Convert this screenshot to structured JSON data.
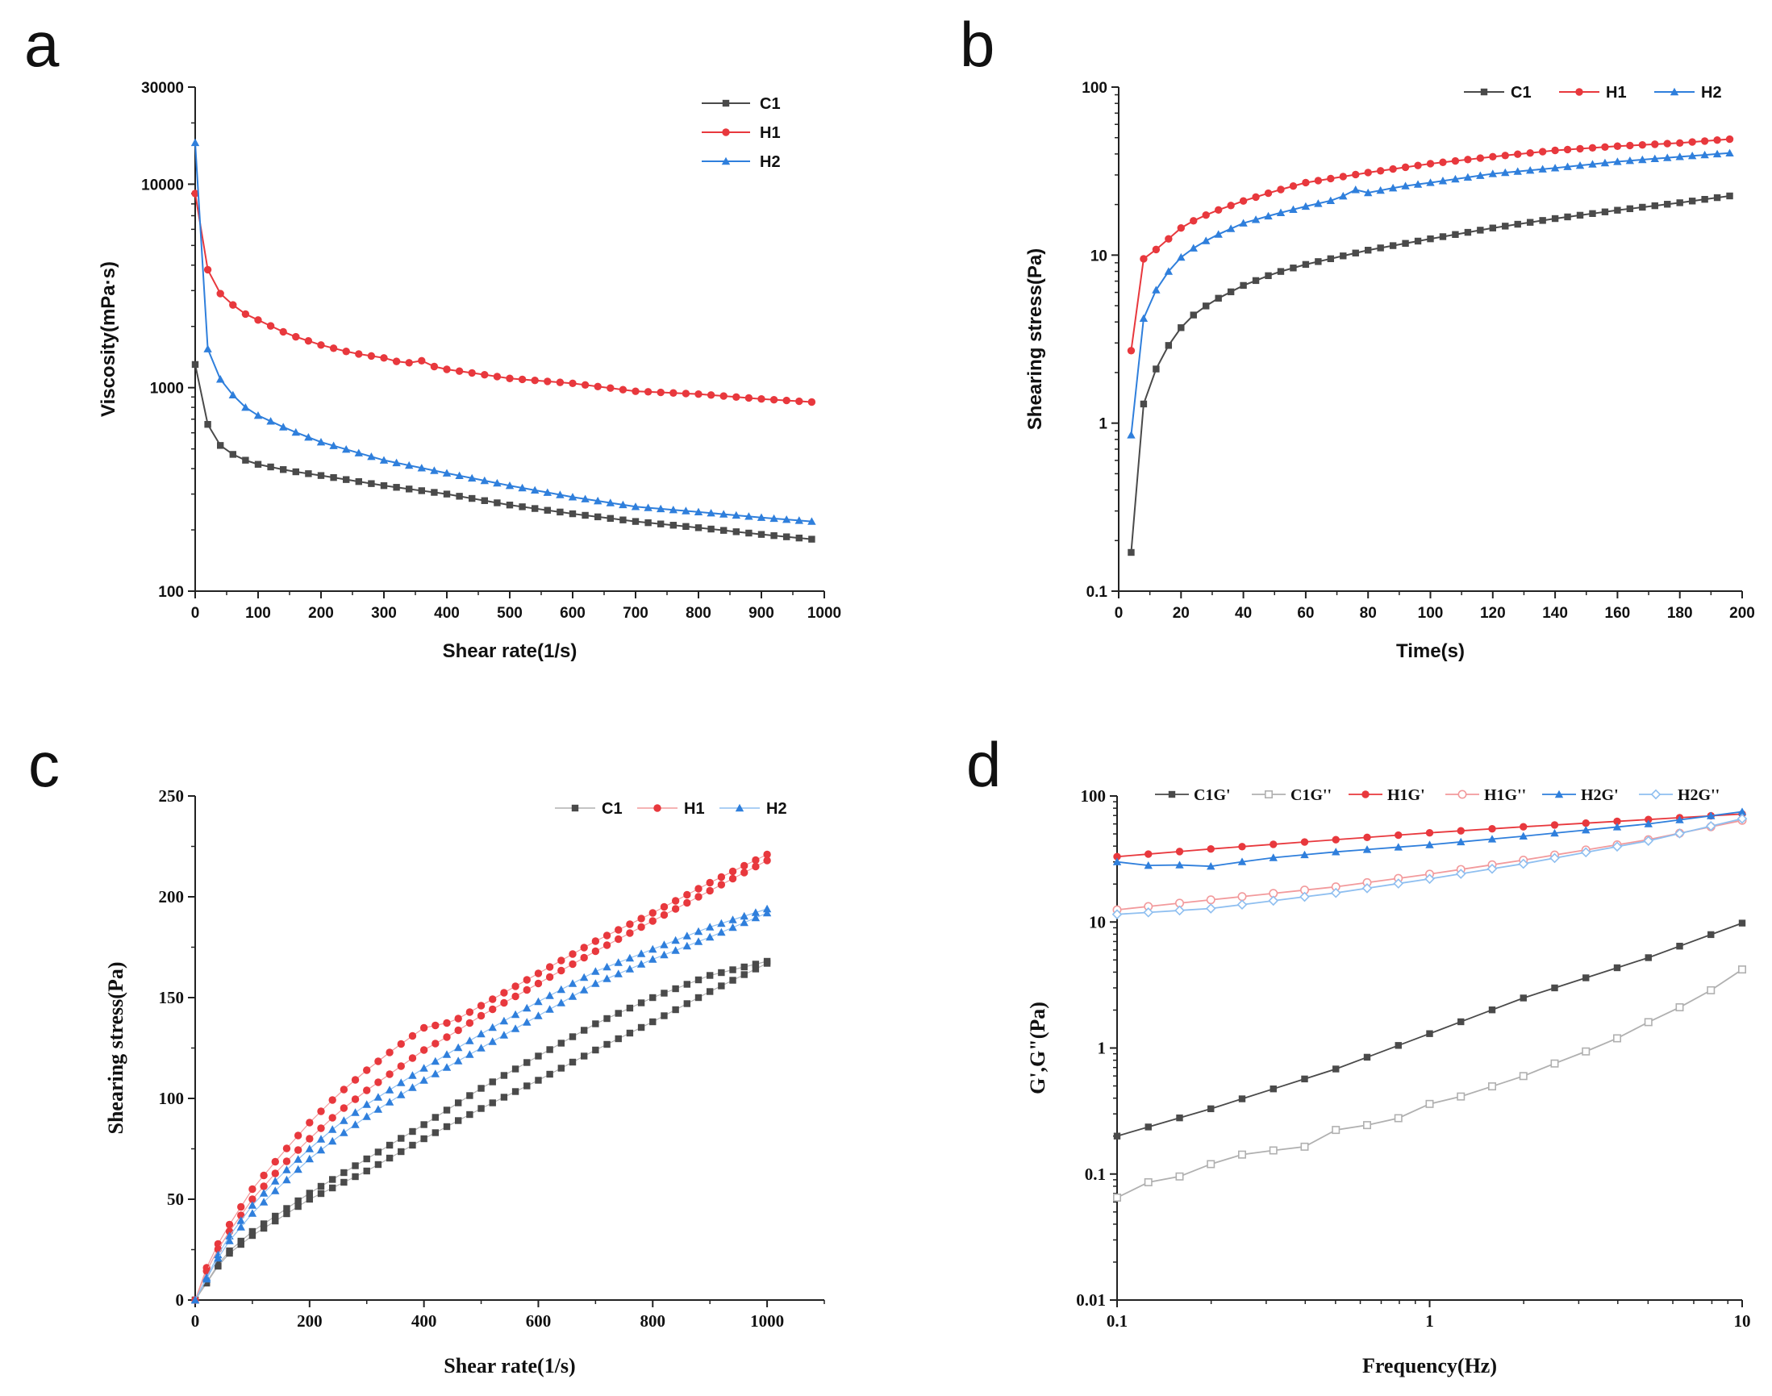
{
  "colors": {
    "C1": "#4a4a4a",
    "H1": "#e8383d",
    "H2": "#2f7fdc",
    "C1_open": "#b0b0b0",
    "H1_open": "#f29a9c",
    "H2_open": "#8fbff0"
  },
  "chart_data": [
    {
      "panel": "a",
      "type": "line",
      "xlabel": "Shear rate(1/s)",
      "ylabel": "Viscosity(mPa·s)",
      "xlim": [
        0,
        1000
      ],
      "ylim": [
        100,
        30000
      ],
      "yscale": "log",
      "xticks": [
        "0",
        "100",
        "200",
        "300",
        "400",
        "500",
        "600",
        "700",
        "800",
        "900",
        "1000"
      ],
      "yticks": [
        "100",
        "1000",
        "10000",
        "30000"
      ],
      "legend": "top-right",
      "series": [
        {
          "name": "C1",
          "x": [
            0,
            20,
            40,
            60,
            80,
            100,
            150,
            200,
            300,
            400,
            500,
            600,
            700,
            800,
            900,
            980
          ],
          "y": [
            1300,
            660,
            520,
            470,
            440,
            420,
            390,
            370,
            330,
            300,
            265,
            240,
            220,
            205,
            190,
            180
          ]
        },
        {
          "name": "H1",
          "x": [
            0,
            20,
            40,
            60,
            80,
            100,
            150,
            200,
            250,
            300,
            330,
            350,
            365,
            380,
            400,
            450,
            500,
            600,
            700,
            800,
            900,
            980
          ],
          "y": [
            9000,
            3800,
            2900,
            2550,
            2300,
            2150,
            1820,
            1620,
            1480,
            1400,
            1320,
            1330,
            1370,
            1270,
            1230,
            1170,
            1110,
            1050,
            960,
            930,
            880,
            850
          ]
        },
        {
          "name": "H2",
          "x": [
            0,
            20,
            40,
            60,
            80,
            100,
            150,
            200,
            300,
            400,
            500,
            600,
            700,
            800,
            900,
            980
          ],
          "y": [
            16000,
            1550,
            1100,
            920,
            800,
            730,
            620,
            540,
            440,
            380,
            330,
            290,
            260,
            245,
            230,
            220
          ]
        }
      ]
    },
    {
      "panel": "b",
      "type": "line",
      "xlabel": "Time(s)",
      "ylabel": "Shearing stress(Pa)",
      "xlim": [
        0,
        200
      ],
      "ylim": [
        0.1,
        100
      ],
      "yscale": "log",
      "xticks": [
        "0",
        "20",
        "40",
        "60",
        "80",
        "100",
        "120",
        "140",
        "160",
        "180",
        "200"
      ],
      "yticks": [
        "0.1",
        "1",
        "10",
        "100"
      ],
      "legend": "top-right",
      "series": [
        {
          "name": "C1",
          "x": [
            4,
            8,
            12,
            16,
            20,
            24,
            30,
            40,
            50,
            60,
            80,
            100,
            120,
            140,
            160,
            180,
            196
          ],
          "y": [
            0.17,
            1.3,
            2.1,
            2.9,
            3.7,
            4.4,
            5.3,
            6.6,
            7.8,
            8.8,
            10.7,
            12.5,
            14.5,
            16.5,
            18.5,
            20.5,
            22.5
          ]
        },
        {
          "name": "H1",
          "x": [
            4,
            8,
            12,
            16,
            20,
            24,
            30,
            40,
            50,
            60,
            80,
            100,
            120,
            140,
            160,
            180,
            196
          ],
          "y": [
            2.7,
            9.5,
            10.8,
            12.5,
            14.5,
            16,
            18,
            21,
            24,
            27,
            31,
            35,
            38.5,
            42,
            44.5,
            46.5,
            49
          ]
        },
        {
          "name": "H2",
          "x": [
            4,
            8,
            12,
            16,
            20,
            24,
            30,
            40,
            50,
            60,
            70,
            76,
            80,
            90,
            100,
            120,
            140,
            160,
            180,
            196
          ],
          "y": [
            0.85,
            4.2,
            6.2,
            8.0,
            9.7,
            11,
            12.8,
            15.5,
            17.5,
            19.5,
            21.5,
            24.5,
            23.5,
            25.5,
            27,
            30.5,
            33,
            36,
            38.5,
            40.5
          ]
        }
      ]
    },
    {
      "panel": "c",
      "type": "scatter",
      "xlabel": "Shear rate(1/s)",
      "ylabel": "Shearing stress(Pa)",
      "xlim": [
        0,
        1100
      ],
      "ylim": [
        0,
        250
      ],
      "xticks": [
        "0",
        "200",
        "400",
        "600",
        "800",
        "1000"
      ],
      "yticks": [
        "0",
        "50",
        "100",
        "150",
        "200",
        "250"
      ],
      "legend": "top-right",
      "series": [
        {
          "name": "C1",
          "up": {
            "x": [
              0,
              50,
              100,
              200,
              300,
              400,
              500,
              600,
              700,
              800,
              900,
              1000
            ],
            "y": [
              0,
              22,
              34,
              53,
              70,
              87,
              105,
              121,
              137,
              150,
              161,
              168
            ]
          },
          "down": {
            "x": [
              0,
              50,
              100,
              200,
              300,
              400,
              500,
              600,
              700,
              800,
              900,
              1000
            ],
            "y": [
              0,
              21,
              32,
              50,
              64,
              80,
              95,
              109,
              124,
              138,
              153,
              167
            ]
          }
        },
        {
          "name": "H1",
          "up": {
            "x": [
              0,
              25,
              50,
              100,
              150,
              200,
              250,
              300,
              350,
              400,
              450,
              500,
              600,
              700,
              800,
              900,
              1000
            ],
            "y": [
              0,
              20,
              33,
              55,
              72,
              88,
              102,
              114,
              125,
              135,
              138,
              146,
              162,
              178,
              192,
              207,
              221
            ]
          },
          "down": {
            "x": [
              0,
              25,
              50,
              100,
              150,
              200,
              250,
              300,
              350,
              400,
              450,
              500,
              600,
              700,
              800,
              900,
              1000
            ],
            "y": [
              0,
              18,
              30,
              50,
              66,
              80,
              93,
              104,
              114,
              124,
              132,
              141,
              157,
              173,
              188,
              203,
              218
            ]
          }
        },
        {
          "name": "H2",
          "up": {
            "x": [
              0,
              50,
              100,
              150,
              200,
              250,
              300,
              350,
              400,
              500,
              600,
              700,
              800,
              900,
              1000
            ],
            "y": [
              0,
              28,
              47,
              62,
              75,
              87,
              97,
              106,
              115,
              132,
              148,
              163,
              174,
              185,
              194
            ]
          },
          "down": {
            "x": [
              0,
              50,
              100,
              150,
              200,
              250,
              300,
              350,
              400,
              500,
              600,
              700,
              800,
              900,
              1000
            ],
            "y": [
              0,
              26,
              43,
              57,
              70,
              81,
              91,
              100,
              109,
              125,
              141,
              157,
              169,
              180,
              192
            ]
          }
        }
      ]
    },
    {
      "panel": "d",
      "type": "line",
      "xlabel": "Frequency(Hz)",
      "ylabel": "G',G\"(Pa)",
      "xlim": [
        0.1,
        10
      ],
      "ylim": [
        0.01,
        100
      ],
      "xscale": "log",
      "yscale": "log",
      "xticks": [
        "0.1",
        "1",
        "10"
      ],
      "yticks": [
        "0.01",
        "0.1",
        "1",
        "10",
        "100"
      ],
      "legend": "top",
      "series": [
        {
          "name": "C1G'",
          "marker": "filled-square",
          "x": [
            0.1,
            0.2,
            0.5,
            1,
            2,
            5,
            10
          ],
          "y": [
            0.2,
            0.33,
            0.68,
            1.3,
            2.5,
            5.2,
            9.8
          ]
        },
        {
          "name": "C1G''",
          "marker": "open-square",
          "x": [
            0.1,
            0.12,
            0.15,
            0.18,
            0.22,
            0.27,
            0.33,
            0.4,
            0.48,
            0.6,
            0.75,
            1,
            1.3,
            1.6,
            2,
            2.5,
            3.2,
            4,
            5,
            6.3,
            8,
            10
          ],
          "y": [
            0.065,
            0.085,
            0.09,
            0.11,
            0.13,
            0.15,
            0.155,
            0.165,
            0.22,
            0.24,
            0.26,
            0.36,
            0.42,
            0.5,
            0.6,
            0.75,
            0.95,
            1.2,
            1.6,
            2.1,
            2.9,
            4.2
          ]
        },
        {
          "name": "H1G'",
          "marker": "filled-circle",
          "x": [
            0.1,
            0.2,
            0.5,
            1,
            2,
            5,
            10
          ],
          "y": [
            33,
            38,
            45,
            51,
            57,
            65,
            72
          ]
        },
        {
          "name": "H1G''",
          "marker": "open-circle",
          "x": [
            0.1,
            0.2,
            0.5,
            1,
            2,
            5,
            10
          ],
          "y": [
            12.5,
            15,
            19,
            24,
            31,
            45,
            64
          ]
        },
        {
          "name": "H2G'",
          "marker": "filled-triangle",
          "x": [
            0.1,
            0.12,
            0.15,
            0.18,
            0.21,
            0.25,
            0.3,
            0.5,
            1,
            2,
            5,
            10
          ],
          "y": [
            30,
            28,
            28.5,
            28,
            27.5,
            30,
            32,
            36,
            41,
            48,
            60,
            75
          ]
        },
        {
          "name": "H2G''",
          "marker": "open-diamond",
          "x": [
            0.1,
            0.2,
            0.5,
            1,
            2,
            5,
            10
          ],
          "y": [
            11.5,
            12.8,
            17,
            22,
            29,
            44,
            66
          ]
        }
      ]
    }
  ],
  "panels": {
    "a": {
      "letter": "a"
    },
    "b": {
      "letter": "b"
    },
    "c": {
      "letter": "c"
    },
    "d": {
      "letter": "d"
    }
  }
}
